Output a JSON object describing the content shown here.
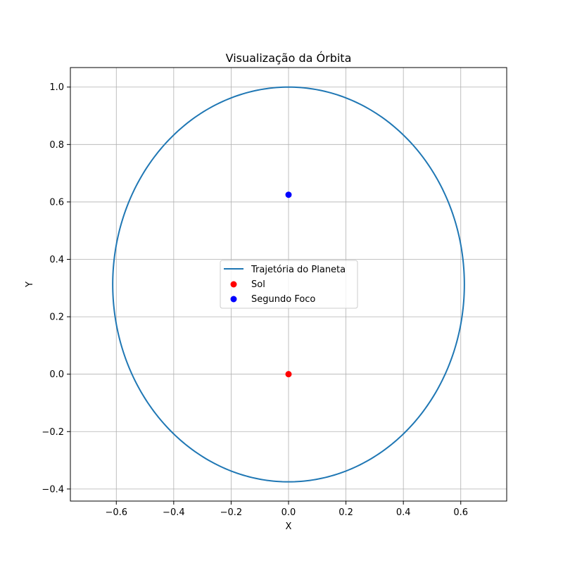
{
  "chart_data": {
    "type": "scatter",
    "title": "Visualização da Órbita",
    "xlabel": "X",
    "ylabel": "Y",
    "xlim": [
      -0.76,
      0.76
    ],
    "ylim": [
      -0.442,
      1.068
    ],
    "grid": true,
    "legend_position": "center",
    "xticks": [
      -0.6,
      -0.4,
      -0.2,
      0.0,
      0.2,
      0.4,
      0.6
    ],
    "xtick_labels": [
      "−0.6",
      "−0.4",
      "−0.2",
      "0.0",
      "0.2",
      "0.4",
      "0.6"
    ],
    "yticks": [
      -0.4,
      -0.2,
      0.0,
      0.2,
      0.4,
      0.6,
      0.8,
      1.0
    ],
    "ytick_labels": [
      "−0.4",
      "−0.2",
      "0.0",
      "0.2",
      "0.4",
      "0.6",
      "0.8",
      "1.0"
    ],
    "series": [
      {
        "name": "Trajetória do Planeta",
        "kind": "line",
        "color": "#1f77b4",
        "shape": "ellipse",
        "center": [
          0.0,
          0.3125
        ],
        "semi_axis_x": 0.6125,
        "semi_axis_y": 0.6875
      },
      {
        "name": "Sol",
        "kind": "scatter",
        "color": "#ff0000",
        "points": [
          [
            0.0,
            0.0
          ]
        ]
      },
      {
        "name": "Segundo Foco",
        "kind": "scatter",
        "color": "#0000ff",
        "points": [
          [
            0.0,
            0.625
          ]
        ]
      }
    ]
  }
}
